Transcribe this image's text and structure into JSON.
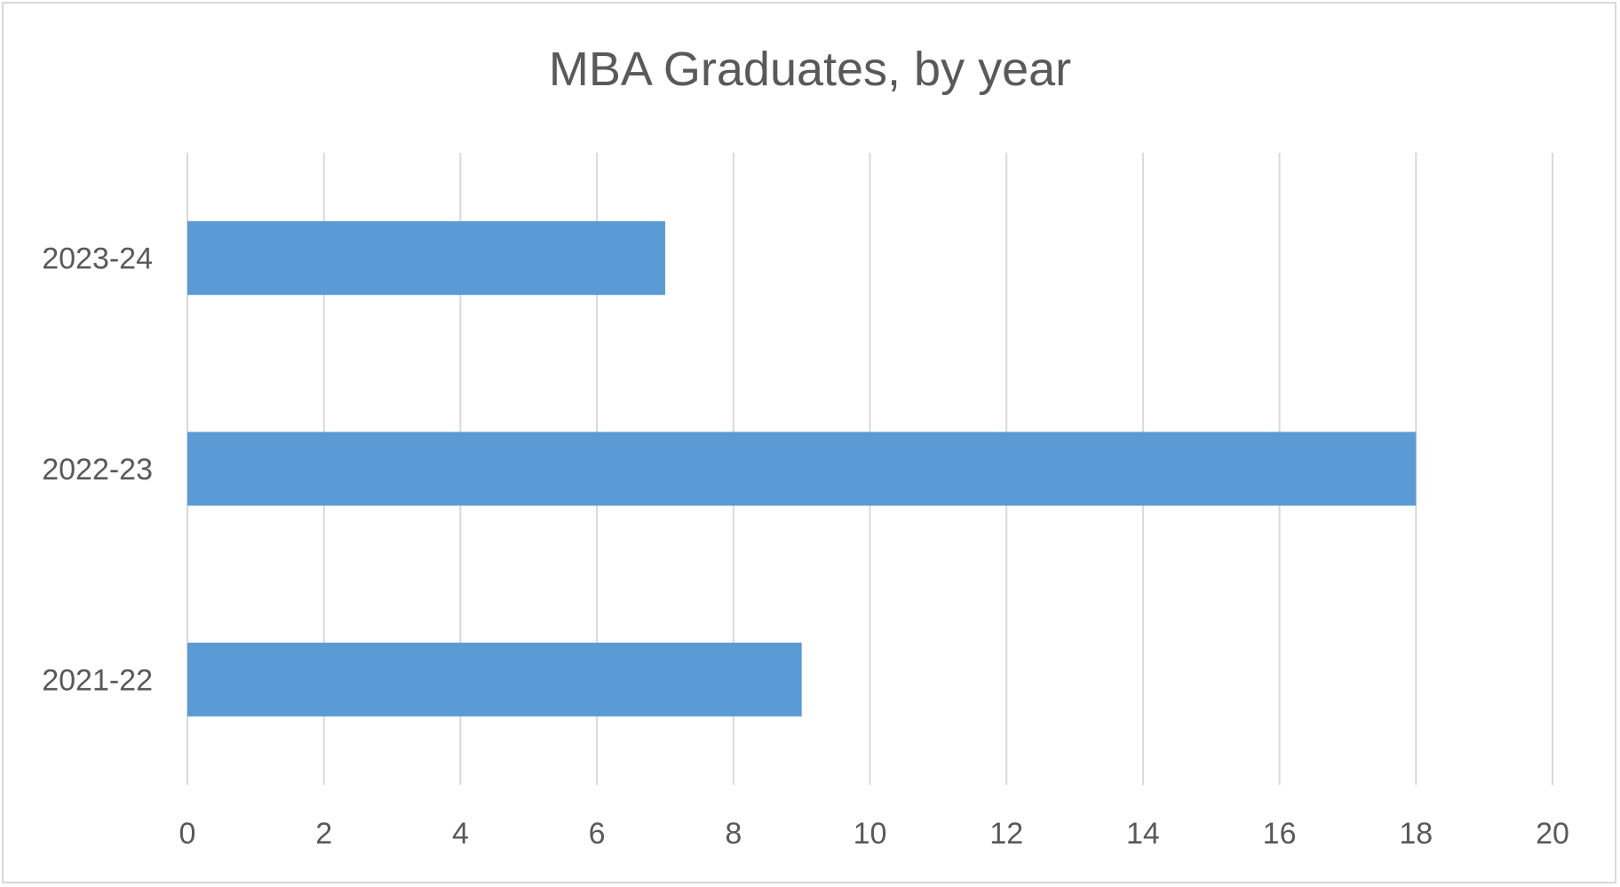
{
  "chart_data": {
    "type": "bar",
    "orientation": "horizontal",
    "title": "MBA Graduates, by year",
    "xlabel": "",
    "ylabel": "",
    "categories": [
      "2021-22",
      "2022-23",
      "2023-24"
    ],
    "values": [
      9,
      18,
      7
    ],
    "xlim": [
      0,
      20
    ],
    "x_ticks": [
      "0",
      "2",
      "4",
      "6",
      "8",
      "10",
      "12",
      "14",
      "16",
      "18",
      "20"
    ],
    "grid": "vertical",
    "legend": "none",
    "bar_color": "#5b9bd5",
    "grid_color": "#d9d9d9",
    "text_color": "#595959"
  }
}
